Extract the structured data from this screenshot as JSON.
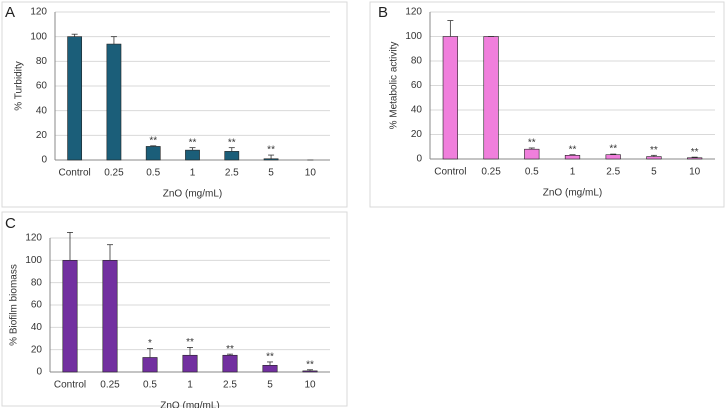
{
  "chart_data": [
    {
      "type": "bar",
      "panel": "A",
      "ylabel": "% Turbidity",
      "xlabel": "ZnO  (mg/mL)",
      "categories": [
        "Control",
        "0.25",
        "0.5",
        "1",
        "2.5",
        "5",
        "10"
      ],
      "values": [
        100,
        94,
        11,
        8,
        7,
        1,
        0
      ],
      "errors": [
        2,
        6,
        0.5,
        2,
        3,
        3,
        0
      ],
      "annotations": [
        null,
        null,
        "**",
        "**",
        "**",
        "**",
        null
      ],
      "color": "#1b5e79",
      "ylim": [
        0,
        120
      ],
      "yticks": [
        0,
        20,
        40,
        60,
        80,
        100,
        120
      ],
      "grid": true
    },
    {
      "type": "bar",
      "panel": "B",
      "ylabel": "% Metabolic activity",
      "xlabel": "ZnO  (mg/mL)",
      "categories": [
        "Control",
        "0.25",
        "0.5",
        "1",
        "2.5",
        "5",
        "10"
      ],
      "values": [
        100,
        100,
        8,
        3,
        3.5,
        2,
        1
      ],
      "errors": [
        13,
        0,
        1,
        0.5,
        0.5,
        1,
        0.5
      ],
      "annotations": [
        null,
        null,
        "**",
        "**",
        "**",
        "**",
        "**"
      ],
      "color": "#f07fdc",
      "ylim": [
        0,
        120
      ],
      "yticks": [
        0,
        20,
        40,
        60,
        80,
        100,
        120
      ],
      "grid": true
    },
    {
      "type": "bar",
      "panel": "C",
      "ylabel": "% Biofilm biomass",
      "xlabel": "ZnO (mg/mL)",
      "categories": [
        "Control",
        "0.25",
        "0.5",
        "1",
        "2.5",
        "5",
        "10"
      ],
      "values": [
        100,
        100,
        13,
        15,
        15,
        6,
        1
      ],
      "errors": [
        25,
        14,
        8,
        7,
        1,
        3,
        1
      ],
      "annotations": [
        null,
        null,
        "*",
        "**",
        "**",
        "**",
        "**"
      ],
      "color": "#7230a0",
      "ylim": [
        0,
        120
      ],
      "yticks": [
        0,
        20,
        40,
        60,
        80,
        100,
        120
      ],
      "grid": true
    }
  ]
}
